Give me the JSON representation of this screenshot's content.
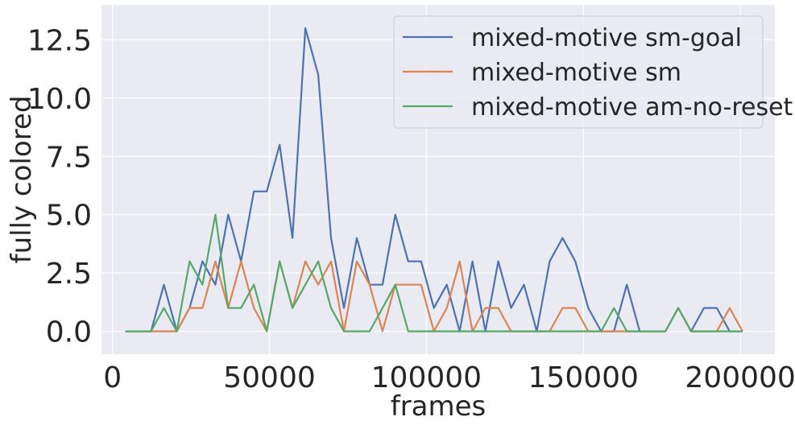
{
  "chart_data": {
    "type": "line",
    "xlabel": "frames",
    "ylabel": "fully colored",
    "xlim": [
      -3500,
      211000
    ],
    "ylim": [
      -0.98,
      14.0
    ],
    "xticks": [
      0,
      50000,
      100000,
      150000,
      200000
    ],
    "xtick_labels": [
      "0",
      "50000",
      "100000",
      "150000",
      "200000"
    ],
    "yticks": [
      0.0,
      2.5,
      5.0,
      7.5,
      10.0,
      12.5
    ],
    "ytick_labels": [
      "0.0",
      "2.5",
      "5.0",
      "7.5",
      "10.0",
      "12.5"
    ],
    "grid": true,
    "legend_position": "top-right",
    "background": "#eaeaf2",
    "x": [
      4096,
      8192,
      12288,
      16384,
      20480,
      24576,
      28672,
      32768,
      36864,
      40960,
      45056,
      49152,
      53248,
      57344,
      61440,
      65536,
      69632,
      73728,
      77824,
      81920,
      86016,
      90112,
      94208,
      98304,
      102400,
      106496,
      110592,
      114688,
      118784,
      122880,
      126976,
      131072,
      135168,
      139264,
      143360,
      147456,
      151552,
      155648,
      159744,
      163840,
      167936,
      172032,
      176128,
      180224,
      184320,
      188416,
      192512,
      196608,
      200704
    ],
    "series": [
      {
        "name": "mixed-motive sm-goal",
        "color": "#4c72b0",
        "values": [
          0,
          0,
          0,
          2,
          0,
          1,
          3,
          2,
          5,
          3,
          6,
          6,
          8,
          4,
          13,
          11,
          4,
          1,
          4,
          2,
          2,
          5,
          3,
          3,
          1,
          2,
          0,
          3,
          0,
          3,
          1,
          2,
          0,
          3,
          4,
          3,
          1,
          0,
          0,
          2,
          0,
          0,
          0,
          1,
          0,
          1,
          1,
          0,
          0
        ]
      },
      {
        "name": "mixed-motive sm",
        "color": "#dd8452",
        "values": [
          0,
          0,
          0,
          0,
          0,
          1,
          1,
          3,
          1,
          3,
          1,
          0,
          3,
          1,
          3,
          2,
          3,
          0,
          3,
          2,
          0,
          2,
          2,
          2,
          0,
          1,
          3,
          0,
          1,
          1,
          0,
          0,
          0,
          0,
          1,
          1,
          0,
          0,
          0,
          0,
          0,
          0,
          0,
          1,
          0,
          0,
          0,
          1,
          0
        ]
      },
      {
        "name": "mixed-motive am-no-reset",
        "color": "#55a868",
        "values": [
          0,
          0,
          0,
          1,
          0,
          3,
          2,
          5,
          1,
          1,
          2,
          0,
          3,
          1,
          2,
          3,
          1,
          0,
          0,
          0,
          1,
          2,
          0,
          0,
          0,
          0,
          0,
          0,
          0,
          0,
          0,
          0,
          0,
          0,
          0,
          0,
          0,
          0,
          1,
          0,
          0,
          0,
          0,
          1,
          0,
          0,
          0,
          0,
          0
        ]
      }
    ]
  }
}
